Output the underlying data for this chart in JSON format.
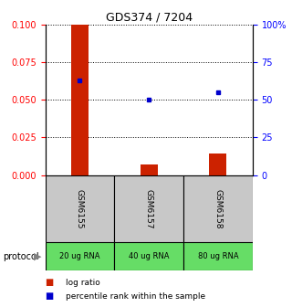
{
  "title": "GDS374 / 7204",
  "samples": [
    "GSM6155",
    "GSM6157",
    "GSM6158"
  ],
  "protocols": [
    "20 ug RNA",
    "40 ug RNA",
    "80 ug RNA"
  ],
  "log_ratio": [
    0.1,
    0.007,
    0.014
  ],
  "percentile_rank": [
    0.063,
    0.05,
    0.055
  ],
  "ylim_left": [
    0,
    0.1
  ],
  "yticks_left": [
    0,
    0.025,
    0.05,
    0.075,
    0.1
  ],
  "yticks_right": [
    0,
    25,
    50,
    75,
    100
  ],
  "bar_color": "#cc2200",
  "point_color": "#0000cc",
  "sample_bg": "#c8c8c8",
  "protocol_bg": "#66dd66",
  "title_fontsize": 9,
  "tick_fontsize": 7,
  "legend_fontsize": 6.5
}
